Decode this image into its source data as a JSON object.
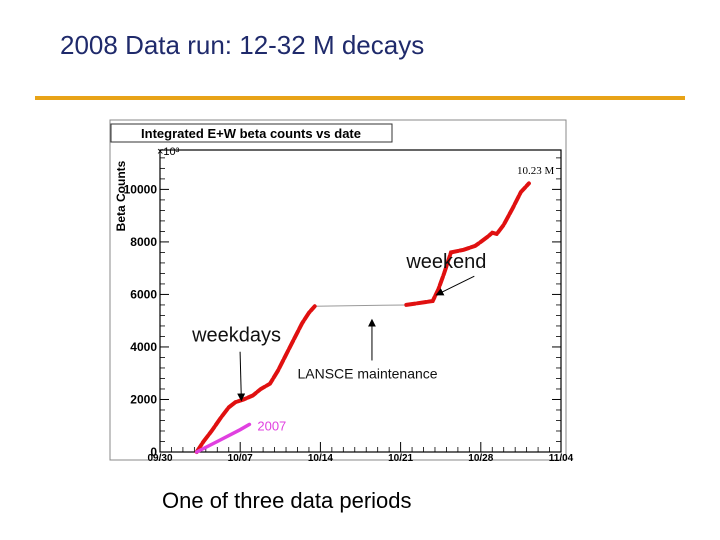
{
  "slide": {
    "title": "2008 Data run: 12-32 M decays",
    "caption": "One of three data periods",
    "accent_color": "#e8a317",
    "title_color": "#1f2a6b"
  },
  "chart_data": {
    "type": "line",
    "title": "Integrated E+W beta counts vs date",
    "ylabel": "Beta Counts",
    "xlabel": "",
    "y_multiplier_label": "×10³",
    "ylim": [
      0,
      11500
    ],
    "y_ticks": [
      0,
      2000,
      4000,
      6000,
      8000,
      10000
    ],
    "y_tick_labels": [
      "0",
      "2000",
      "4000",
      "6000",
      "8000",
      "10000"
    ],
    "xlim": [
      0,
      35
    ],
    "x_ticks": [
      0,
      7,
      14,
      21,
      28,
      35
    ],
    "x_tick_labels": [
      "09/30",
      "10/07",
      "10/14",
      "10/21",
      "10/28",
      "11/04"
    ],
    "end_label": "10.23 M",
    "series": [
      {
        "name": "",
        "color": "#e01010",
        "points": [
          [
            3.2,
            0
          ],
          [
            3.8,
            400
          ],
          [
            4.5,
            800
          ],
          [
            5.3,
            1300
          ],
          [
            6.0,
            1700
          ],
          [
            6.6,
            1900
          ],
          [
            7.3,
            2000
          ],
          [
            8.1,
            2150
          ],
          [
            8.8,
            2400
          ],
          [
            9.6,
            2600
          ],
          [
            10.3,
            3100
          ],
          [
            11.0,
            3700
          ],
          [
            11.7,
            4300
          ],
          [
            12.4,
            4900
          ],
          [
            13.0,
            5300
          ],
          [
            13.5,
            5550
          ],
          [
            21.5,
            5600
          ],
          [
            23.8,
            5750
          ],
          [
            24.3,
            6200
          ],
          [
            24.8,
            6800
          ],
          [
            25.4,
            7600
          ],
          [
            26.5,
            7700
          ],
          [
            27.5,
            7850
          ],
          [
            28.0,
            8000
          ],
          [
            28.6,
            8200
          ],
          [
            29.0,
            8350
          ],
          [
            29.4,
            8300
          ],
          [
            30.0,
            8650
          ],
          [
            30.8,
            9300
          ],
          [
            31.5,
            9900
          ],
          [
            32.2,
            10230
          ]
        ],
        "gaps": [
          [
            13.5,
            21.5
          ]
        ]
      },
      {
        "name": "2007",
        "color": "#e040e0",
        "points": [
          [
            3.2,
            0
          ],
          [
            5.0,
            400
          ],
          [
            7.0,
            850
          ],
          [
            7.8,
            1050
          ]
        ]
      }
    ],
    "annotations": [
      {
        "text": "weekend",
        "at": [
          21.5,
          7000
        ],
        "arrow_to": [
          24.2,
          6000
        ]
      },
      {
        "text": "weekdays",
        "at": [
          2.8,
          4200
        ],
        "arrow_to": [
          7.1,
          2000
        ]
      },
      {
        "text": "LANSCE maintenance",
        "at": [
          12.0,
          2800
        ],
        "arrow_to": [
          18.5,
          5000
        ]
      }
    ],
    "grid": false,
    "legend": "none"
  }
}
